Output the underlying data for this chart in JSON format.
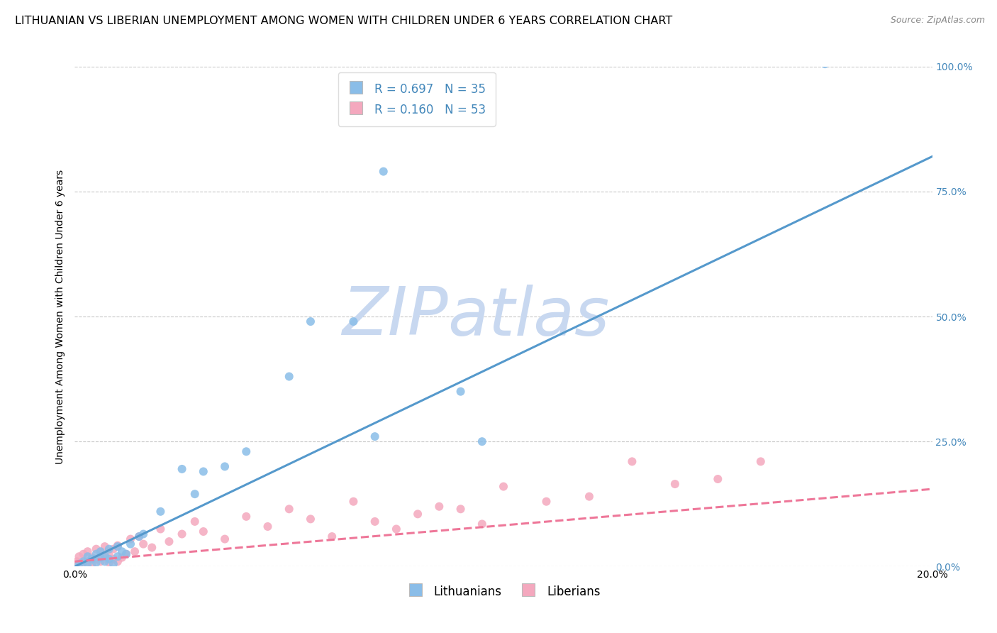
{
  "title": "LITHUANIAN VS LIBERIAN UNEMPLOYMENT AMONG WOMEN WITH CHILDREN UNDER 6 YEARS CORRELATION CHART",
  "source": "Source: ZipAtlas.com",
  "ylabel": "Unemployment Among Women with Children Under 6 years",
  "xlim": [
    0.0,
    0.2
  ],
  "ylim": [
    0.0,
    1.0
  ],
  "xtick_labels": [
    "0.0%",
    "20.0%"
  ],
  "ytick_labels": [
    "0.0%",
    "25.0%",
    "50.0%",
    "75.0%",
    "100.0%"
  ],
  "ytick_vals": [
    0.0,
    0.25,
    0.5,
    0.75,
    1.0
  ],
  "xtick_vals": [
    0.0,
    0.2
  ],
  "grid_color": "#c8c8c8",
  "background_color": "#ffffff",
  "watermark_ZIP": "ZIP",
  "watermark_atlas": "atlas",
  "watermark_color": "#c8d8f0",
  "legend_R1": "R = 0.697",
  "legend_N1": "N = 35",
  "legend_R2": "R = 0.160",
  "legend_N2": "N = 53",
  "legend_label1": "Lithuanians",
  "legend_label2": "Liberians",
  "scatter_color1": "#8abde8",
  "scatter_color2": "#f4a8be",
  "line_color1": "#5599cc",
  "line_color2": "#ee7799",
  "right_tick_color": "#4488bb",
  "title_fontsize": 11.5,
  "axis_label_fontsize": 10,
  "tick_fontsize": 10,
  "line1_x0": 0.0,
  "line1_y0": 0.0,
  "line1_x1": 0.2,
  "line1_y1": 0.82,
  "line2_x0": 0.0,
  "line2_y0": 0.01,
  "line2_x1": 0.2,
  "line2_y1": 0.155,
  "lit_x": [
    0.001,
    0.002,
    0.003,
    0.003,
    0.004,
    0.005,
    0.005,
    0.006,
    0.006,
    0.007,
    0.007,
    0.008,
    0.008,
    0.009,
    0.01,
    0.01,
    0.011,
    0.012,
    0.013,
    0.015,
    0.016,
    0.02,
    0.025,
    0.028,
    0.03,
    0.035,
    0.04,
    0.05,
    0.055,
    0.065,
    0.07,
    0.09,
    0.095,
    0.175,
    0.072
  ],
  "lit_y": [
    0.005,
    0.01,
    0.02,
    0.005,
    0.015,
    0.025,
    0.008,
    0.018,
    0.03,
    0.01,
    0.022,
    0.015,
    0.035,
    0.005,
    0.04,
    0.02,
    0.03,
    0.025,
    0.045,
    0.06,
    0.065,
    0.11,
    0.195,
    0.145,
    0.19,
    0.2,
    0.23,
    0.38,
    0.49,
    0.49,
    0.26,
    0.35,
    0.25,
    1.005,
    0.79
  ],
  "lib_x": [
    0.0005,
    0.001,
    0.001,
    0.002,
    0.002,
    0.003,
    0.003,
    0.004,
    0.004,
    0.005,
    0.005,
    0.006,
    0.006,
    0.007,
    0.007,
    0.008,
    0.008,
    0.009,
    0.009,
    0.01,
    0.01,
    0.011,
    0.012,
    0.013,
    0.014,
    0.015,
    0.016,
    0.018,
    0.02,
    0.022,
    0.025,
    0.028,
    0.03,
    0.035,
    0.04,
    0.045,
    0.05,
    0.055,
    0.06,
    0.065,
    0.07,
    0.075,
    0.08,
    0.085,
    0.09,
    0.095,
    0.1,
    0.11,
    0.12,
    0.13,
    0.14,
    0.15,
    0.16
  ],
  "lib_y": [
    0.01,
    0.005,
    0.02,
    0.008,
    0.025,
    0.01,
    0.03,
    0.005,
    0.018,
    0.015,
    0.035,
    0.01,
    0.028,
    0.02,
    0.04,
    0.008,
    0.022,
    0.015,
    0.035,
    0.01,
    0.042,
    0.018,
    0.025,
    0.055,
    0.03,
    0.06,
    0.045,
    0.038,
    0.075,
    0.05,
    0.065,
    0.09,
    0.07,
    0.055,
    0.1,
    0.08,
    0.115,
    0.095,
    0.06,
    0.13,
    0.09,
    0.075,
    0.105,
    0.12,
    0.115,
    0.085,
    0.16,
    0.13,
    0.14,
    0.21,
    0.165,
    0.175,
    0.21
  ]
}
